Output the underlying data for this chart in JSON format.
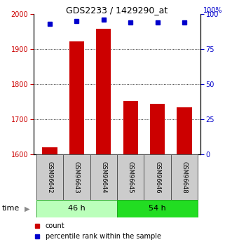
{
  "title": "GDS2233 / 1429290_at",
  "samples": [
    "GSM96642",
    "GSM96643",
    "GSM96644",
    "GSM96645",
    "GSM96646",
    "GSM96648"
  ],
  "counts": [
    1620,
    1922,
    1958,
    1752,
    1745,
    1735
  ],
  "percentiles": [
    93,
    95,
    96,
    94,
    94,
    94
  ],
  "groups": [
    {
      "label": "46 h",
      "color_face": "#bbffbb",
      "color_edge": "#33aa33"
    },
    {
      "label": "54 h",
      "color_face": "#22dd22",
      "color_edge": "#22aa22"
    }
  ],
  "group_split": 3,
  "ylim_left": [
    1600,
    2000
  ],
  "ylim_right": [
    0,
    100
  ],
  "yticks_left": [
    1600,
    1700,
    1800,
    1900,
    2000
  ],
  "yticks_right": [
    0,
    25,
    50,
    75,
    100
  ],
  "bar_color": "#CC0000",
  "dot_color": "#0000CC",
  "left_axis_color": "#CC0000",
  "right_axis_color": "#0000CC",
  "bg_color": "#ffffff",
  "grid_color": "#000000",
  "label_count": "count",
  "label_percentile": "percentile rank within the sample",
  "bar_width": 0.55
}
